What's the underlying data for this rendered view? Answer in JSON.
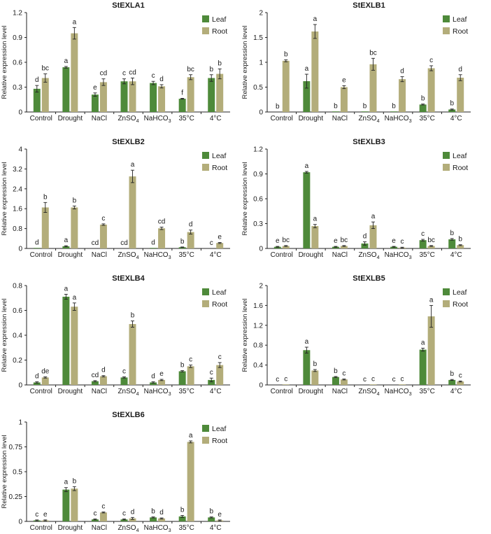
{
  "colors": {
    "leaf": "#4e8a3a",
    "root": "#b3ad7a",
    "axis": "#222222",
    "error_bar": "#222222"
  },
  "chart_data": [
    {
      "type": "bar",
      "title": "StEXLA1",
      "ylabel": "Relative expression level",
      "categories": [
        "Control",
        "Drought",
        "NaCl",
        "ZnSO₄",
        "NaHCO₃",
        "35°C",
        "4°C"
      ],
      "ylim": [
        0,
        1.2
      ],
      "yticks": [
        "0",
        "0.3",
        "0.6",
        "0.9",
        "1.2"
      ],
      "legend_position": "top-right",
      "series": [
        {
          "name": "Leaf",
          "values": [
            0.28,
            0.54,
            0.21,
            0.37,
            0.35,
            0.16,
            0.41
          ],
          "errors": [
            0.04,
            0.01,
            0.02,
            0.03,
            0.02,
            0.005,
            0.04
          ],
          "labels": [
            "d",
            "a",
            "e",
            "c",
            "c",
            "f",
            "b"
          ]
        },
        {
          "name": "Root",
          "values": [
            0.41,
            0.95,
            0.36,
            0.37,
            0.31,
            0.42,
            0.46
          ],
          "errors": [
            0.05,
            0.07,
            0.04,
            0.04,
            0.02,
            0.03,
            0.06
          ],
          "labels": [
            "bc",
            "a",
            "cd",
            "cd",
            "d",
            "bc",
            "b"
          ]
        }
      ]
    },
    {
      "type": "bar",
      "title": "StEXLB1",
      "ylabel": "Relative expression level",
      "categories": [
        "Control",
        "Drought",
        "NaCl",
        "ZnSO₄",
        "NaHCO₃",
        "35°C",
        "4°C"
      ],
      "ylim": [
        0,
        2
      ],
      "yticks": [
        "0",
        "0.5",
        "1",
        "1.5",
        "2"
      ],
      "legend_position": "top-right",
      "series": [
        {
          "name": "Leaf",
          "values": [
            0.0,
            0.62,
            0.01,
            0.01,
            0.01,
            0.15,
            0.05
          ],
          "errors": [
            0.0,
            0.14,
            0.0,
            0.0,
            0.0,
            0.01,
            0.01
          ],
          "labels": [
            "b",
            "a",
            "b",
            "b",
            "b",
            "b",
            "b"
          ]
        },
        {
          "name": "Root",
          "values": [
            1.03,
            1.62,
            0.5,
            0.96,
            0.66,
            0.88,
            0.69
          ],
          "errors": [
            0.02,
            0.14,
            0.03,
            0.12,
            0.05,
            0.05,
            0.06
          ],
          "labels": [
            "b",
            "a",
            "e",
            "bc",
            "d",
            "c",
            "d"
          ]
        }
      ]
    },
    {
      "type": "bar",
      "title": "StEXLB2",
      "ylabel": "Relative expression level",
      "categories": [
        "Control",
        "Drought",
        "NaCl",
        "ZnSO₄",
        "NaHCO₃",
        "35°C",
        "4°C"
      ],
      "ylim": [
        0,
        4
      ],
      "yticks": [
        "0",
        "0.8",
        "1.6",
        "2.4",
        "3.2",
        "4"
      ],
      "legend_position": "top-right",
      "series": [
        {
          "name": "Leaf",
          "values": [
            0.01,
            0.09,
            0.0,
            0.0,
            0.01,
            0.05,
            0.0
          ],
          "errors": [
            0.0,
            0.02,
            0.0,
            0.0,
            0.0,
            0.01,
            0.0
          ],
          "labels": [
            "d",
            "a",
            "cd",
            "cd",
            "d",
            "b",
            "c"
          ]
        },
        {
          "name": "Root",
          "values": [
            1.65,
            1.65,
            0.96,
            2.9,
            0.81,
            0.66,
            0.22
          ],
          "errors": [
            0.2,
            0.06,
            0.03,
            0.25,
            0.05,
            0.08,
            0.02
          ],
          "labels": [
            "b",
            "b",
            "c",
            "a",
            "cd",
            "d",
            "e"
          ]
        }
      ]
    },
    {
      "type": "bar",
      "title": "StEXLB3",
      "ylabel": "Relative expression level",
      "categories": [
        "Control",
        "Drought",
        "NaCl",
        "ZnSO₄",
        "NaHCO₃",
        "35°C",
        "4°C"
      ],
      "ylim": [
        0,
        1.2
      ],
      "yticks": [
        "0",
        "0.3",
        "0.6",
        "0.9",
        "1.2"
      ],
      "legend_position": "top-right",
      "series": [
        {
          "name": "Leaf",
          "values": [
            0.02,
            0.92,
            0.02,
            0.06,
            0.02,
            0.1,
            0.11
          ],
          "errors": [
            0.005,
            0.01,
            0.005,
            0.02,
            0.005,
            0.01,
            0.01
          ],
          "labels": [
            "e",
            "a",
            "e",
            "d",
            "e",
            "c",
            "b"
          ]
        },
        {
          "name": "Root",
          "values": [
            0.03,
            0.27,
            0.03,
            0.28,
            0.01,
            0.03,
            0.04
          ],
          "errors": [
            0.005,
            0.02,
            0.005,
            0.04,
            0.005,
            0.005,
            0.005
          ],
          "labels": [
            "bc",
            "a",
            "bc",
            "a",
            "c",
            "bc",
            "b"
          ]
        }
      ]
    },
    {
      "type": "bar",
      "title": "StEXLB4",
      "ylabel": "Relative expression level",
      "categories": [
        "Control",
        "Drought",
        "NaCl",
        "ZnSO₄",
        "NaHCO₃",
        "35°C",
        "4°C"
      ],
      "ylim": [
        0,
        0.8
      ],
      "yticks": [
        "0",
        "0.2",
        "0.4",
        "0.6",
        "0.8"
      ],
      "legend_position": "top-right",
      "series": [
        {
          "name": "Leaf",
          "values": [
            0.02,
            0.71,
            0.03,
            0.06,
            0.02,
            0.11,
            0.04
          ],
          "errors": [
            0.005,
            0.02,
            0.005,
            0.005,
            0.005,
            0.005,
            0.015
          ],
          "labels": [
            "d",
            "a",
            "cd",
            "c",
            "d",
            "b",
            "c"
          ]
        },
        {
          "name": "Root",
          "values": [
            0.06,
            0.63,
            0.07,
            0.49,
            0.04,
            0.15,
            0.16
          ],
          "errors": [
            0.005,
            0.03,
            0.005,
            0.025,
            0.005,
            0.01,
            0.02
          ],
          "labels": [
            "de",
            "a",
            "d",
            "b",
            "e",
            "c",
            "c"
          ]
        }
      ]
    },
    {
      "type": "bar",
      "title": "StEXLB5",
      "ylabel": "Relative expression level",
      "categories": [
        "Control",
        "Drought",
        "NaCl",
        "ZnSO₄",
        "NaHCO₃",
        "35°C",
        "4°C"
      ],
      "ylim": [
        0,
        2
      ],
      "yticks": [
        "0",
        "0.4",
        "0.8",
        "1.2",
        "1.6",
        "2"
      ],
      "legend_position": "top-right",
      "series": [
        {
          "name": "Leaf",
          "values": [
            0.0,
            0.7,
            0.16,
            0.0,
            0.0,
            0.71,
            0.1
          ],
          "errors": [
            0.0,
            0.06,
            0.01,
            0.0,
            0.0,
            0.03,
            0.01
          ],
          "labels": [
            "c",
            "a",
            "b",
            "c",
            "c",
            "a",
            "b"
          ]
        },
        {
          "name": "Root",
          "values": [
            0.01,
            0.29,
            0.11,
            0.01,
            0.01,
            1.38,
            0.07
          ],
          "errors": [
            0.0,
            0.02,
            0.01,
            0.0,
            0.0,
            0.22,
            0.01
          ],
          "labels": [
            "c",
            "b",
            "c",
            "c",
            "c",
            "a",
            "c"
          ]
        }
      ]
    },
    {
      "type": "bar",
      "title": "StEXLB6",
      "ylabel": "Relative expression level",
      "categories": [
        "Control",
        "Drought",
        "NaCl",
        "ZnSO₄",
        "NaHCO₃",
        "35°C",
        "4°C"
      ],
      "ylim": [
        0,
        1
      ],
      "yticks": [
        "0",
        "0.25",
        "0.5",
        "0.75",
        "1"
      ],
      "legend_position": "top-right",
      "series": [
        {
          "name": "Leaf",
          "values": [
            0.01,
            0.32,
            0.02,
            0.02,
            0.04,
            0.05,
            0.04
          ],
          "errors": [
            0.005,
            0.02,
            0.005,
            0.005,
            0.005,
            0.01,
            0.005
          ],
          "labels": [
            "c",
            "a",
            "c",
            "c",
            "b",
            "b",
            "b"
          ]
        },
        {
          "name": "Root",
          "values": [
            0.01,
            0.33,
            0.09,
            0.03,
            0.03,
            0.8,
            0.01
          ],
          "errors": [
            0.005,
            0.02,
            0.005,
            0.01,
            0.005,
            0.01,
            0.005
          ],
          "labels": [
            "e",
            "b",
            "c",
            "d",
            "d",
            "a",
            "e"
          ]
        }
      ]
    }
  ]
}
